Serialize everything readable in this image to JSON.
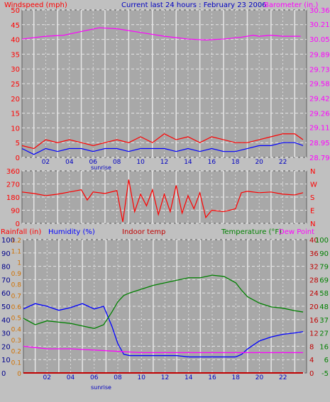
{
  "header": {
    "wind_label": "Windspeed (mph)",
    "current_label": "Current last 24 hours : February 23 2006",
    "baro_label": "Barometer (in.)"
  },
  "colors": {
    "panel_bg": "#c0c0c0",
    "plot_bg": "#a8a8a8",
    "grid": "#e6e6e6",
    "red": "#ff0000",
    "magenta": "#ff00ff",
    "blue": "#0000ff",
    "green": "#008000",
    "orange": "#d07000",
    "dark_red": "#c00000",
    "navy": "#00008b"
  },
  "x_ticks": [
    "02",
    "04",
    "06",
    "08",
    "10",
    "12",
    "14",
    "16",
    "18",
    "20",
    "22"
  ],
  "sunrise_label": "sunrise",
  "chart_data": [
    {
      "type": "line",
      "title": "",
      "y_left_label": "Windspeed (mph)",
      "y_right_label": "Barometer (in.)",
      "left_ticks": [
        "50",
        "45",
        "40",
        "35",
        "30",
        "25",
        "20",
        "15",
        "10",
        "5",
        "0"
      ],
      "right_ticks": [
        "30.36",
        "30.21",
        "30.05",
        "29.89",
        "29.73",
        "29.58",
        "29.42",
        "29.26",
        "29.11",
        "28.95",
        "28.79"
      ],
      "xlim": [
        0,
        24
      ],
      "ylim_left": [
        0,
        50
      ],
      "ylim_right": [
        28.79,
        30.36
      ],
      "series": [
        {
          "name": "Barometer",
          "axis": "right",
          "color": "#ff00ff",
          "x": [
            0,
            2,
            3.5,
            5,
            6.5,
            8,
            10,
            12,
            14,
            15.5,
            17,
            18.5,
            19.5,
            20,
            21,
            22,
            23.5
          ],
          "y": [
            30.05,
            30.08,
            30.09,
            30.13,
            30.17,
            30.16,
            30.12,
            30.08,
            30.05,
            30.04,
            30.05,
            30.07,
            30.09,
            30.08,
            30.09,
            30.08,
            30.08
          ]
        },
        {
          "name": "Wind gust",
          "axis": "left",
          "color": "#ff0000",
          "x": [
            0,
            1,
            2,
            3,
            4,
            5,
            6,
            7,
            8,
            9,
            10,
            11,
            12,
            13,
            14,
            15,
            16,
            17,
            18,
            19,
            20,
            21,
            22,
            23,
            23.7
          ],
          "y": [
            4,
            3,
            6,
            5,
            6,
            5,
            4,
            5,
            6,
            5,
            7,
            5,
            8,
            6,
            7,
            5,
            7,
            6,
            5,
            5,
            6,
            7,
            8,
            8,
            6
          ]
        },
        {
          "name": "Average wind",
          "axis": "left",
          "color": "#0000ff",
          "x": [
            0,
            1,
            2,
            3,
            4,
            5,
            6,
            7,
            8,
            9,
            10,
            11,
            12,
            13,
            14,
            15,
            16,
            17,
            18,
            19,
            20,
            21,
            22,
            23,
            23.7
          ],
          "y": [
            3,
            1,
            3,
            2,
            3,
            3,
            2,
            3,
            3,
            2,
            3,
            3,
            3,
            2,
            3,
            2,
            3,
            2,
            2,
            3,
            4,
            4,
            5,
            5,
            4
          ]
        }
      ]
    },
    {
      "type": "line",
      "title": "",
      "y_left_label": "",
      "y_right_label": "",
      "left_ticks": [
        "360",
        "270",
        "180",
        "90",
        "0"
      ],
      "right_ticks": [
        "N",
        "W",
        "S",
        "E",
        "N"
      ],
      "xlim": [
        0,
        24
      ],
      "ylim_left": [
        0,
        360
      ],
      "series": [
        {
          "name": "Wind direction",
          "color": "#ff0000",
          "x": [
            0,
            1,
            2,
            3,
            4,
            5,
            5.5,
            6,
            7,
            8,
            8.5,
            9,
            9.5,
            10,
            10.5,
            11,
            11.5,
            12,
            12.5,
            13,
            13.5,
            14,
            14.5,
            15,
            15.5,
            16,
            17,
            18,
            18.5,
            19,
            20,
            21,
            22,
            23,
            23.7
          ],
          "y": [
            215,
            205,
            190,
            200,
            215,
            230,
            160,
            215,
            205,
            225,
            10,
            300,
            80,
            200,
            120,
            230,
            60,
            200,
            80,
            260,
            70,
            190,
            100,
            210,
            40,
            90,
            80,
            100,
            210,
            220,
            210,
            215,
            200,
            195,
            210
          ]
        }
      ]
    },
    {
      "type": "line",
      "title": "",
      "labels_top": {
        "rainfall": "Rainfall (in)",
        "humidity": "Humidity (%)",
        "indoor": "Indoor temp",
        "temperature": "Temperature (°F)",
        "dewpoint": "Dew Point"
      },
      "humidity_ticks": [
        "100",
        "90",
        "80",
        "70",
        "60",
        "50",
        "40",
        "30",
        "20",
        "10",
        "0"
      ],
      "rain_ticks": [
        "1.2",
        "1.1",
        "1",
        "0.9",
        "0.8",
        "0.7",
        "0.6",
        "0.5",
        "0.4",
        "0.3",
        "0.2",
        "0.1",
        "0"
      ],
      "indoor_ticks": [
        "40",
        "36",
        "32",
        "28",
        "24",
        "20",
        "16",
        "12",
        "8",
        "4",
        "0"
      ],
      "temp_ticks": [
        "100",
        "90",
        "79",
        "69",
        "58",
        "48",
        "37",
        "27",
        "16",
        "6",
        "-5"
      ],
      "xlim": [
        0,
        24
      ],
      "ylim_humidity": [
        0,
        100
      ],
      "ylim_temp": [
        -5,
        100
      ],
      "series": [
        {
          "name": "Humidity",
          "axis": "humidity",
          "color": "#0000ff",
          "x": [
            0,
            1,
            2,
            3,
            4,
            5,
            6,
            6.8,
            7.5,
            8,
            8.5,
            9,
            10,
            11,
            12,
            13,
            14,
            15,
            16,
            17,
            18,
            18.5,
            19,
            20,
            21,
            22,
            23,
            23.7
          ],
          "y": [
            48,
            52,
            50,
            47,
            49,
            52,
            48,
            50,
            35,
            22,
            14,
            13,
            13,
            13,
            13,
            13,
            12,
            12,
            12,
            12,
            12,
            14,
            18,
            24,
            27,
            29,
            30,
            31
          ]
        },
        {
          "name": "Temperature",
          "axis": "temp",
          "color": "#008000",
          "x": [
            0,
            1,
            2,
            3,
            4,
            5,
            6,
            6.8,
            7.5,
            8,
            8.5,
            9,
            10,
            11,
            12,
            13,
            14,
            15,
            16,
            17,
            18,
            18.5,
            19,
            20,
            21,
            22,
            23,
            23.7
          ],
          "y": [
            38,
            33,
            36,
            35,
            34,
            32,
            30,
            33,
            43,
            51,
            56,
            58,
            61,
            64,
            66,
            68,
            70,
            70,
            72,
            71,
            66,
            60,
            55,
            50,
            47,
            46,
            44,
            43
          ]
        },
        {
          "name": "Dew Point",
          "axis": "temp",
          "color": "#ff00ff",
          "x": [
            0,
            1,
            2,
            4,
            6,
            8,
            10,
            12,
            14,
            16,
            18,
            20,
            22,
            23.7
          ],
          "y": [
            16,
            15,
            14,
            14,
            13,
            12,
            11,
            11,
            11,
            11,
            11,
            11,
            11,
            11
          ]
        },
        {
          "name": "Indoor temp",
          "axis": "temp",
          "color": "#c00000",
          "x": [
            0,
            23.7
          ],
          "y": [
            -5,
            -5
          ]
        }
      ]
    }
  ]
}
